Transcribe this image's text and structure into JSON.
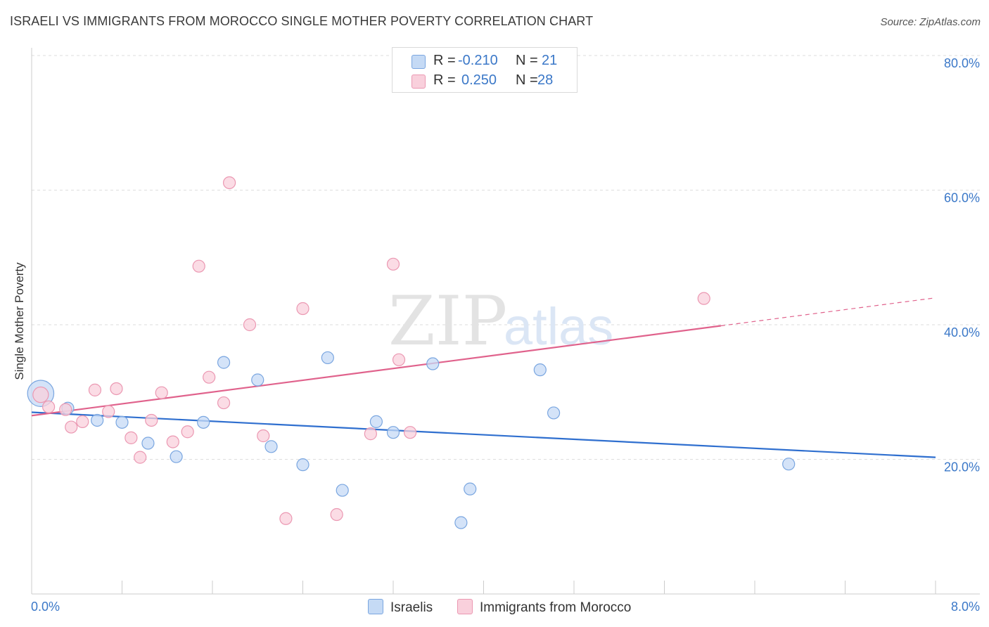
{
  "title": "ISRAELI VS IMMIGRANTS FROM MOROCCO SINGLE MOTHER POVERTY CORRELATION CHART",
  "source": "Source: ZipAtlas.com",
  "watermark": {
    "zip": "ZIP",
    "atlas": "atlas"
  },
  "legend": {
    "rows": [
      {
        "r_label": "R =",
        "r_value": "-0.210",
        "n_label": "N =",
        "n_value": "21"
      },
      {
        "r_label": "R =",
        "r_value": "0.250",
        "n_label": "N =",
        "n_value": "28"
      }
    ]
  },
  "bottom_legend": [
    "Israelis",
    "Immigrants from Morocco"
  ],
  "colors": {
    "israelis_fill": "#c5daf5",
    "israelis_stroke": "#7aa6e0",
    "israelis_line": "#2f6fcf",
    "morocco_fill": "#f9d0dc",
    "morocco_stroke": "#eb98b2",
    "morocco_line": "#e0628c",
    "tick_text": "#3b78c8",
    "grid": "#dedede"
  },
  "chart_data": {
    "type": "scatter",
    "title": "ISRAELI VS IMMIGRANTS FROM MOROCCO SINGLE MOTHER POVERTY CORRELATION CHART",
    "xlabel": "",
    "ylabel": "Single Mother Poverty",
    "xlim": [
      0,
      8
    ],
    "ylim": [
      0,
      80
    ],
    "x_tick_labels": [
      "0.0%",
      "8.0%"
    ],
    "y_ticks": [
      20,
      40,
      60,
      80
    ],
    "y_tick_labels": [
      "20.0%",
      "40.0%",
      "60.0%",
      "80.0%"
    ],
    "grid": true,
    "legend_position": "top-center",
    "series": [
      {
        "name": "Israelis",
        "r": -0.21,
        "n": 21,
        "points": [
          [
            0.08,
            29.8,
            2.2
          ],
          [
            0.32,
            27.6,
            1
          ],
          [
            0.58,
            25.8,
            1
          ],
          [
            0.8,
            25.5,
            1
          ],
          [
            1.03,
            22.4,
            1
          ],
          [
            1.28,
            20.4,
            1
          ],
          [
            1.52,
            25.5,
            1
          ],
          [
            1.7,
            34.4,
            1
          ],
          [
            2.0,
            31.8,
            1
          ],
          [
            2.12,
            21.9,
            1
          ],
          [
            2.4,
            19.2,
            1
          ],
          [
            2.62,
            35.1,
            1
          ],
          [
            2.75,
            15.4,
            1
          ],
          [
            3.05,
            25.6,
            1
          ],
          [
            3.2,
            24.0,
            1
          ],
          [
            3.55,
            34.2,
            1
          ],
          [
            3.8,
            10.6,
            1
          ],
          [
            3.88,
            15.6,
            1
          ],
          [
            4.5,
            33.3,
            1
          ],
          [
            4.62,
            26.9,
            1
          ],
          [
            6.7,
            19.3,
            1
          ]
        ],
        "trend": {
          "x": [
            0,
            8
          ],
          "y": [
            27.0,
            20.3
          ]
        }
      },
      {
        "name": "Immigrants from Morocco",
        "r": 0.25,
        "n": 28,
        "points": [
          [
            0.08,
            29.6,
            1.3
          ],
          [
            0.15,
            27.8,
            1
          ],
          [
            0.3,
            27.4,
            1
          ],
          [
            0.35,
            24.8,
            1
          ],
          [
            0.45,
            25.6,
            1
          ],
          [
            0.56,
            30.3,
            1
          ],
          [
            0.68,
            27.1,
            1
          ],
          [
            0.75,
            30.5,
            1
          ],
          [
            0.88,
            23.2,
            1
          ],
          [
            0.96,
            20.3,
            1
          ],
          [
            1.06,
            25.8,
            1
          ],
          [
            1.15,
            29.9,
            1
          ],
          [
            1.25,
            22.6,
            1
          ],
          [
            1.38,
            24.1,
            1
          ],
          [
            1.48,
            48.7,
            1
          ],
          [
            1.57,
            32.2,
            1
          ],
          [
            1.7,
            28.4,
            1
          ],
          [
            1.75,
            61.1,
            1
          ],
          [
            1.93,
            40.0,
            1
          ],
          [
            2.05,
            23.5,
            1
          ],
          [
            2.25,
            11.2,
            1
          ],
          [
            2.4,
            42.4,
            1
          ],
          [
            2.7,
            11.8,
            1
          ],
          [
            3.0,
            23.8,
            1
          ],
          [
            3.2,
            49.0,
            1
          ],
          [
            3.25,
            34.8,
            1
          ],
          [
            3.35,
            24.0,
            1
          ],
          [
            5.95,
            43.9,
            1
          ]
        ],
        "trend": {
          "x": [
            0,
            8
          ],
          "y": [
            26.5,
            44.0
          ],
          "solid_until_x": 6.1
        }
      }
    ]
  }
}
